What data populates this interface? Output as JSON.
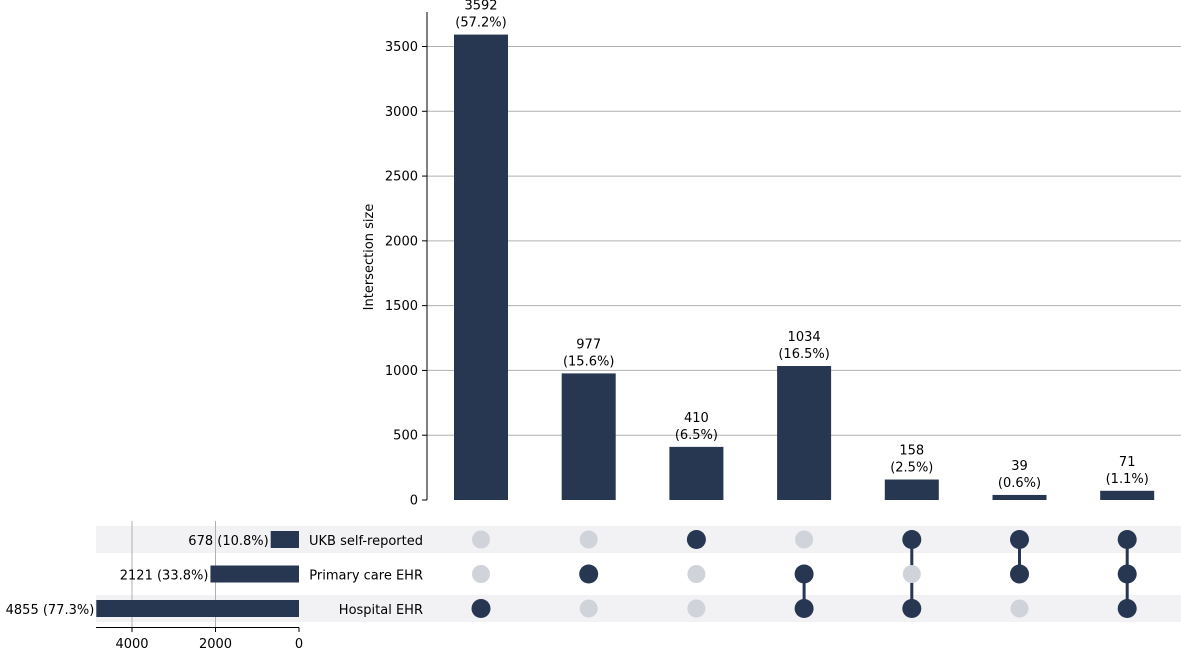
{
  "chart_data": {
    "type": "upset",
    "ylabel": "Intersection size",
    "ylim": [
      0,
      3800
    ],
    "yticks": [
      0,
      500,
      1000,
      1500,
      2000,
      2500,
      3000,
      3500
    ],
    "sets": [
      {
        "name": "UKB self-reported",
        "size": 678,
        "label": "678 (10.8%)"
      },
      {
        "name": "Primary care EHR",
        "size": 2121,
        "label": "2121 (33.8%)"
      },
      {
        "name": "Hospital EHR",
        "size": 4855,
        "label": "4855 (77.3%)"
      }
    ],
    "set_axis_ticks": [
      4000,
      2000,
      0
    ],
    "intersections": [
      {
        "members": [
          false,
          false,
          true
        ],
        "value": 3592,
        "label": "3592",
        "pct": "(57.2%)"
      },
      {
        "members": [
          false,
          true,
          false
        ],
        "value": 977,
        "label": "977",
        "pct": "(15.6%)"
      },
      {
        "members": [
          true,
          false,
          false
        ],
        "value": 410,
        "label": "410",
        "pct": "(6.5%)"
      },
      {
        "members": [
          false,
          true,
          true
        ],
        "value": 1034,
        "label": "1034",
        "pct": "(16.5%)"
      },
      {
        "members": [
          true,
          false,
          true
        ],
        "value": 158,
        "label": "158",
        "pct": "(2.5%)"
      },
      {
        "members": [
          true,
          true,
          false
        ],
        "value": 39,
        "label": "39",
        "pct": "(0.6%)"
      },
      {
        "members": [
          true,
          true,
          true
        ],
        "value": 71,
        "label": "71",
        "pct": "(1.1%)"
      }
    ],
    "grid": true,
    "colors": {
      "bar": "#273651",
      "dot_active": "#273651",
      "dot_inactive": "#d0d3da",
      "stripe": "#f2f2f5",
      "grid": "#b0b0b0"
    }
  }
}
